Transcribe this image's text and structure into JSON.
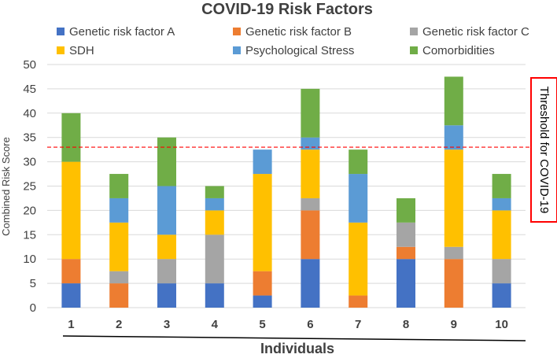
{
  "chart_data": {
    "type": "bar",
    "stacked": true,
    "title": "COVID-19 Risk Factors",
    "xlabel": "Individuals",
    "ylabel": "Combined Risk Score",
    "ylim": [
      0,
      50
    ],
    "yticks": [
      0,
      5,
      10,
      15,
      20,
      25,
      30,
      35,
      40,
      45,
      50
    ],
    "grid": true,
    "legend_position": "top",
    "categories": [
      "1",
      "2",
      "3",
      "4",
      "5",
      "6",
      "7",
      "8",
      "9",
      "10"
    ],
    "series": [
      {
        "name": "Genetic risk factor A",
        "color": "#4472c4",
        "values": [
          5,
          0,
          5,
          5,
          2.5,
          10,
          0,
          10,
          0,
          5
        ]
      },
      {
        "name": "Genetic risk factor B",
        "color": "#ed7d31",
        "values": [
          5,
          5,
          0,
          0,
          5,
          10,
          2.5,
          2.5,
          10,
          0
        ]
      },
      {
        "name": "Genetic risk factor C",
        "color": "#a5a5a5",
        "values": [
          0,
          2.5,
          5,
          10,
          0,
          2.5,
          0,
          5,
          2.5,
          5
        ]
      },
      {
        "name": "SDH",
        "color": "#ffc000",
        "values": [
          20,
          10,
          5,
          5,
          20,
          10,
          15,
          0,
          20,
          10
        ]
      },
      {
        "name": "Psychological Stress",
        "color": "#5b9bd5",
        "values": [
          0,
          5,
          10,
          2.5,
          5,
          2.5,
          10,
          0,
          5,
          2.5
        ]
      },
      {
        "name": "Comorbidities",
        "color": "#70ad47",
        "values": [
          10,
          5,
          10,
          2.5,
          0,
          10,
          5,
          5,
          10,
          5
        ]
      }
    ],
    "threshold": {
      "value": 33,
      "label": "Threshold for COVID-19",
      "color": "#ff0000"
    }
  }
}
